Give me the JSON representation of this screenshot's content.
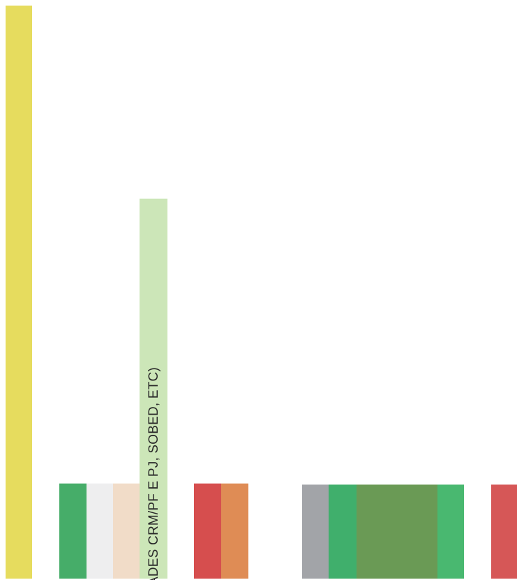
{
  "chart_data": {
    "type": "bar",
    "title": "",
    "xlabel": "",
    "ylabel": "",
    "legend": "none",
    "grid": false,
    "bars": [
      {
        "group": 0,
        "value": 100,
        "color": "#e6dc5e"
      },
      {
        "group": 1,
        "value": 16.6,
        "color": "#46ad69"
      },
      {
        "group": 1,
        "value": 16.6,
        "color": "#eeeeef"
      },
      {
        "group": 1,
        "value": 16.6,
        "color": "#f1dcc8"
      },
      {
        "group": 1,
        "value": 66.3,
        "color": "#cce6b8",
        "label": "ADES CRM/PF E PJ, SOBED, ETC)"
      },
      {
        "group": 2,
        "value": 16.6,
        "color": "#d64e4e"
      },
      {
        "group": 2,
        "value": 16.6,
        "color": "#df8c55"
      },
      {
        "group": 3,
        "value": 16.4,
        "color": "#a2a4a8"
      },
      {
        "group": 3,
        "value": 16.4,
        "color": "#40af6c"
      },
      {
        "group": 3,
        "value": 16.4,
        "color": "#6a9a55"
      },
      {
        "group": 3,
        "value": 16.4,
        "color": "#6a9a55"
      },
      {
        "group": 3,
        "value": 16.4,
        "color": "#49b870"
      },
      {
        "group": 4,
        "value": 16.4,
        "color": "#d65757"
      }
    ]
  }
}
